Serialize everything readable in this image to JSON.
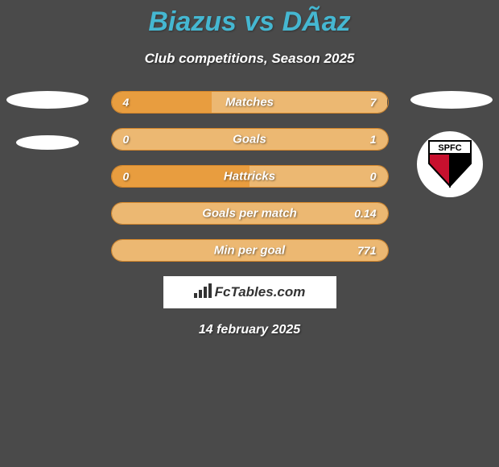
{
  "title": "Biazus vs DÃ­az",
  "subtitle": "Club competitions, Season 2025",
  "date": "14 february 2025",
  "logo_text": "FcTables.com",
  "colors": {
    "background": "#4a4a4a",
    "title_color": "#45b7d1",
    "bar_left": "#e89d3f",
    "bar_right": "#ecb872",
    "bar_border": "#d4862a",
    "text_white": "#ffffff"
  },
  "stats": [
    {
      "label": "Matches",
      "left_value": "4",
      "right_value": "7",
      "left_percent": 36.4,
      "right_percent": 63.6
    },
    {
      "label": "Goals",
      "left_value": "0",
      "right_value": "1",
      "left_percent": 0,
      "right_percent": 100
    },
    {
      "label": "Hattricks",
      "left_value": "0",
      "right_value": "0",
      "left_percent": 50,
      "right_percent": 50
    },
    {
      "label": "Goals per match",
      "left_value": "",
      "right_value": "0.14",
      "left_percent": 0,
      "right_percent": 100
    },
    {
      "label": "Min per goal",
      "left_value": "",
      "right_value": "771",
      "left_percent": 0,
      "right_percent": 100
    }
  ],
  "club": {
    "name": "SPFC",
    "colors": {
      "red": "#c8102e",
      "black": "#000000",
      "white": "#ffffff"
    }
  }
}
